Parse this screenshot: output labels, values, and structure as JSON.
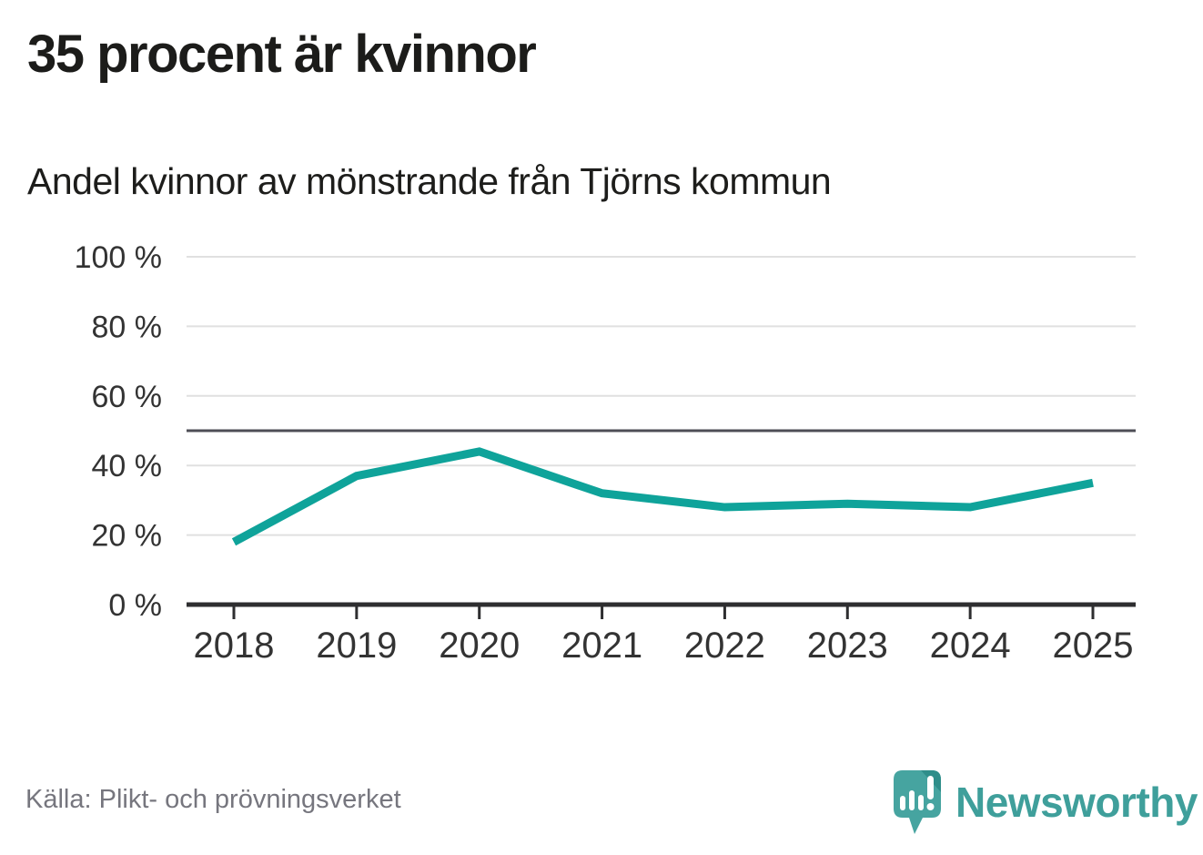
{
  "title": "35 procent är kvinnor",
  "subtitle": "Andel kvinnor av mönstrande från Tjörns kommun",
  "source": "Källa: Plikt- och prövningsverket",
  "brand": {
    "name": "Newsworthy"
  },
  "chart_data": {
    "type": "line",
    "x": [
      2018,
      2019,
      2020,
      2021,
      2022,
      2023,
      2024,
      2025
    ],
    "series": [
      {
        "name": "Andel kvinnor av mönstrande",
        "values": [
          18,
          37,
          44,
          32,
          28,
          29,
          28,
          35
        ]
      }
    ],
    "unit": "%",
    "ylim": [
      0,
      100
    ],
    "yticks": [
      0,
      20,
      40,
      60,
      80,
      100
    ],
    "ytick_suffix": " %",
    "reference_line": 50,
    "grid": true,
    "legend": false,
    "line_color": "#0fa39a",
    "grid_color": "#e0e0e0",
    "ref_line_color": "#4e4e56",
    "axis_color": "#2e2e30",
    "tick_label_color": "#333333"
  }
}
